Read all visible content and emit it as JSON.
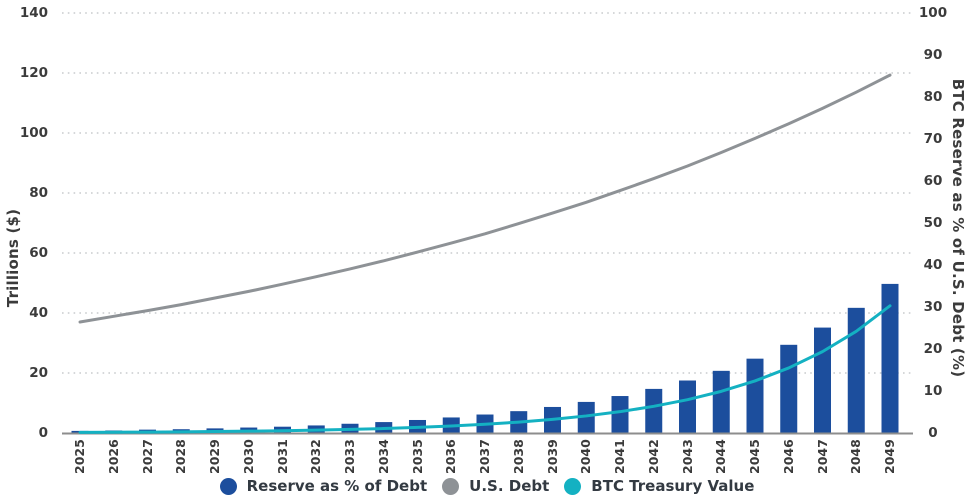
{
  "chart_data": {
    "type": "combo",
    "title": "",
    "x": [
      2025,
      2026,
      2027,
      2028,
      2029,
      2030,
      2031,
      2032,
      2033,
      2034,
      2035,
      2036,
      2037,
      2038,
      2039,
      2040,
      2041,
      2042,
      2043,
      2044,
      2045,
      2046,
      2047,
      2048,
      2049
    ],
    "series": [
      {
        "name": "Reserve as % of Debt",
        "type": "bar",
        "axis": "right",
        "color": "#1c4e9d",
        "values": [
          0.5,
          0.6,
          0.8,
          0.9,
          1.1,
          1.3,
          1.5,
          1.8,
          2.2,
          2.6,
          3.1,
          3.7,
          4.4,
          5.2,
          6.2,
          7.4,
          8.8,
          10.5,
          12.5,
          14.8,
          17.7,
          21.0,
          25.1,
          29.8,
          35.5
        ]
      },
      {
        "name": "U.S. Debt",
        "type": "line",
        "axis": "left",
        "color": "#8e9296",
        "values": [
          37.0,
          38.9,
          40.8,
          42.8,
          45.0,
          47.2,
          49.6,
          52.1,
          54.7,
          57.4,
          60.3,
          63.3,
          66.4,
          69.8,
          73.3,
          76.9,
          80.8,
          84.8,
          89.0,
          93.5,
          98.2,
          103.1,
          108.2,
          113.6,
          119.3
        ]
      },
      {
        "name": "BTC Treasury Value",
        "type": "line",
        "axis": "left",
        "color": "#14b1c2",
        "values": [
          0.2,
          0.25,
          0.31,
          0.39,
          0.49,
          0.61,
          0.76,
          0.95,
          1.19,
          1.49,
          1.86,
          2.33,
          2.91,
          3.64,
          4.55,
          5.69,
          7.11,
          8.89,
          11.11,
          13.88,
          17.36,
          21.69,
          27.12,
          33.9,
          42.4
        ]
      }
    ],
    "left_axis": {
      "label": "Trillions ($)",
      "min": 0,
      "max": 140,
      "ticks": [
        0,
        20,
        40,
        60,
        80,
        100,
        120,
        140
      ]
    },
    "right_axis": {
      "label": "BTC Reserve as % of U.S. Debt (%)",
      "min": 0,
      "max": 100,
      "ticks": [
        0,
        10,
        20,
        30,
        40,
        50,
        60,
        70,
        80,
        90,
        100
      ]
    },
    "grid": "horizontal dotted at left-axis ticks",
    "grid_color": "#c9cbcd",
    "axis_line_color": "#8d8d8d",
    "legend_position": "bottom-center",
    "background": "#ffffff"
  }
}
